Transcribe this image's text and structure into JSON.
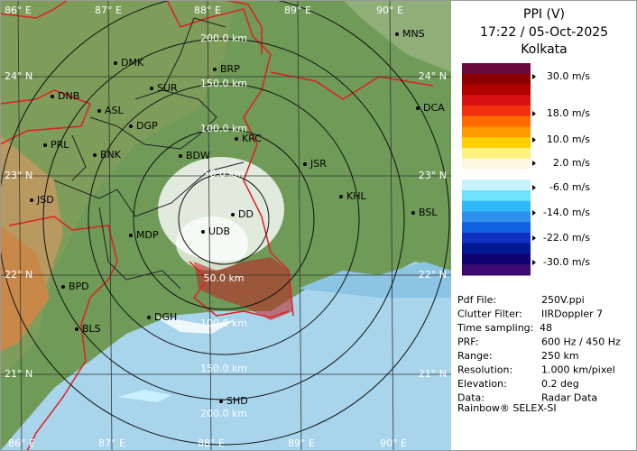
{
  "header": {
    "title": "PPI (V)",
    "time": "17:22 / 05-Oct-2025",
    "station": "Kolkata"
  },
  "legend": {
    "entries": [
      {
        "label": "30.0 m/s"
      },
      {
        "label": "18.0 m/s"
      },
      {
        "label": "10.0 m/s"
      },
      {
        "label": "2.0 m/s"
      },
      {
        "label": "-6.0 m/s"
      },
      {
        "label": "-14.0 m/s"
      },
      {
        "label": "-22.0 m/s"
      },
      {
        "label": "-30.0 m/s"
      }
    ],
    "colors": [
      "#6a0a3a",
      "#8a0000",
      "#b00000",
      "#d81010",
      "#f03010",
      "#ff6a00",
      "#ff9a00",
      "#ffd000",
      "#fff080",
      "#fff8e0",
      "#ffffff",
      "#c8f0ff",
      "#70e0ff",
      "#30b8f8",
      "#3090f0",
      "#1060e0",
      "#1030c0",
      "#001890",
      "#100070",
      "#3a0a70"
    ]
  },
  "info": {
    "rows": [
      [
        "Pdf File:",
        "250V.ppi"
      ],
      [
        "Clutter Filter:",
        "IIRDoppler 7"
      ],
      [
        "Time sampling:",
        "48"
      ],
      [
        "PRF:",
        "600 Hz / 450 Hz"
      ],
      [
        "Range:",
        "250 km"
      ],
      [
        "Resolution:",
        "1.000 km/pixel"
      ],
      [
        "Elevation:",
        "0.2 deg"
      ],
      [
        "Data:",
        "Radar Data"
      ]
    ],
    "footer": "Rainbow® SELEX-SI"
  },
  "map": {
    "lon_labels": [
      "86° E",
      "87° E",
      "88° E",
      "89° E",
      "90° E"
    ],
    "lat_labels": [
      "24° N",
      "23° N",
      "22° N",
      "21° N"
    ],
    "range_labels": [
      "50.0 km",
      "100.0 km",
      "150.0 km",
      "200.0 km"
    ],
    "cities": [
      "MNS",
      "DMK",
      "BRP",
      "DNB",
      "SUR",
      "ASL",
      "DCA",
      "DGP",
      "KRC",
      "PRL",
      "BNK",
      "BDW",
      "JSR",
      "JSD",
      "KHL",
      "BSL",
      "DD",
      "MDP",
      "UDB",
      "BPD",
      "DGH",
      "BLS",
      "SHD"
    ]
  }
}
